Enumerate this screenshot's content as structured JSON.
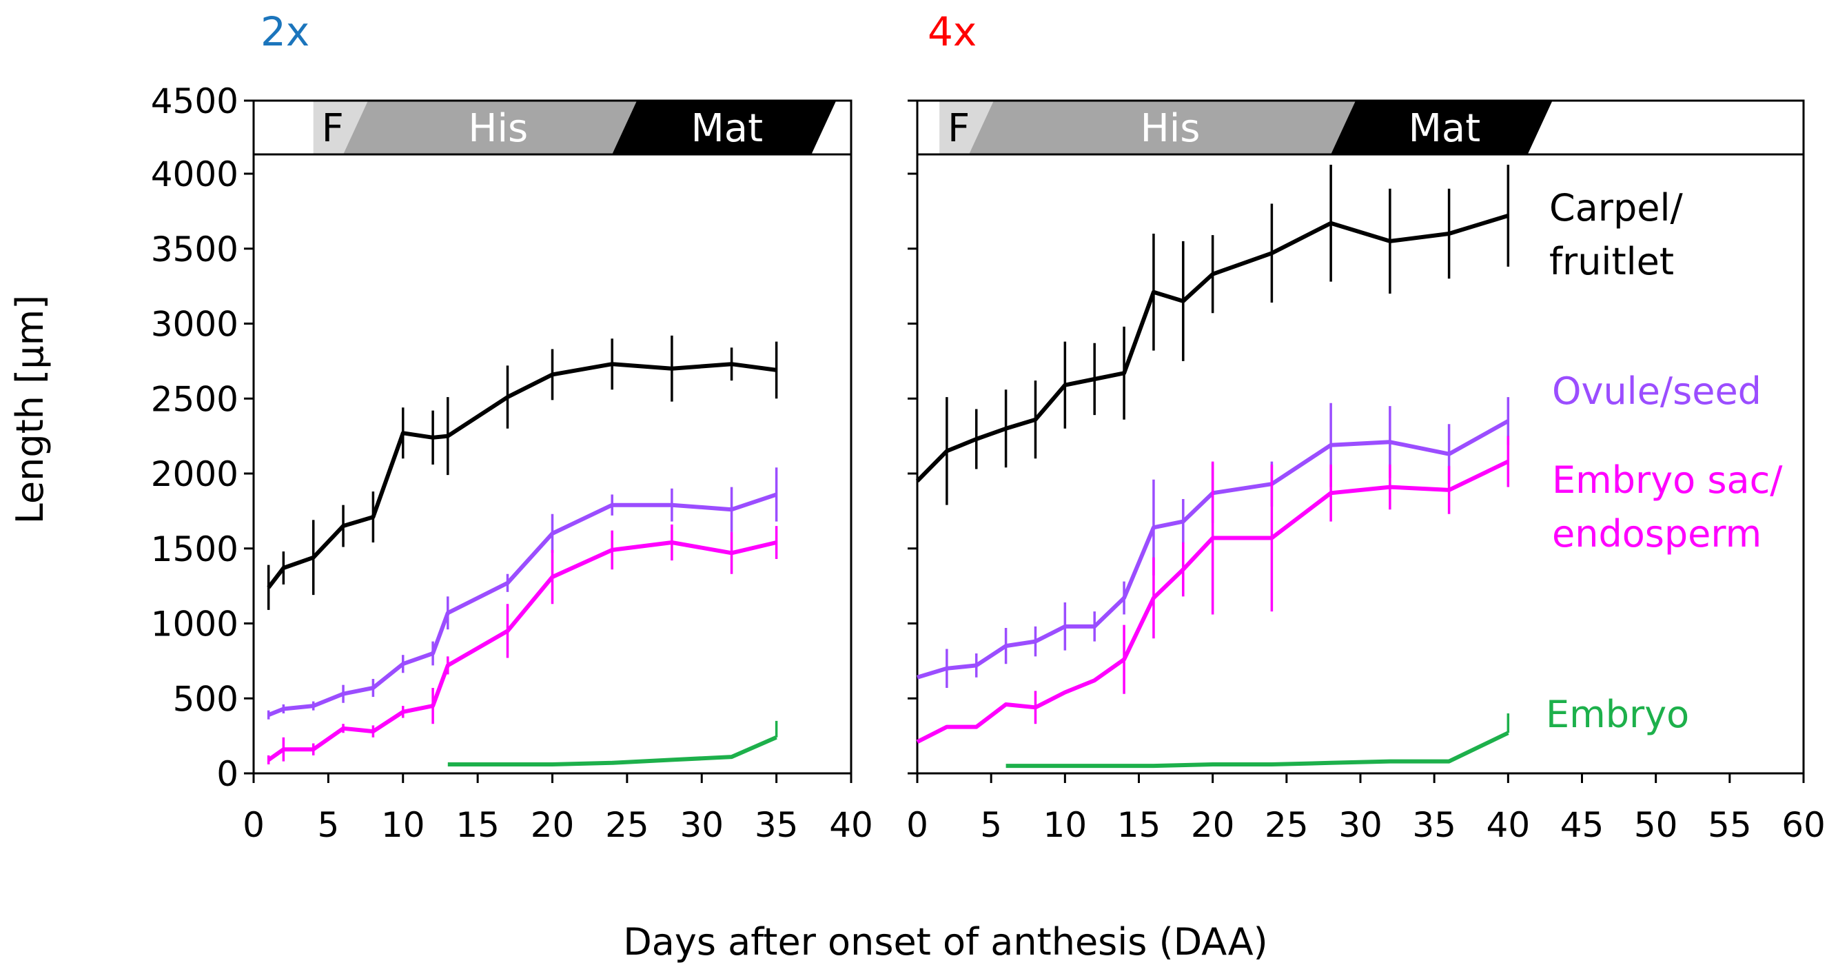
{
  "figure": {
    "ylabel": "Length [µm]",
    "xlabel": "Days after onset of anthesis (DAA)"
  },
  "colors": {
    "carpel": "#000000",
    "ovule": "#9B4DFF",
    "embryo_sac": "#FF00FF",
    "embryo": "#1DB04B",
    "title_2x": "#1B75BC",
    "title_4x": "#FF0000",
    "stage_f": "#D9D9D9",
    "stage_his": "#A6A6A6",
    "stage_mat": "#000000"
  },
  "legend": {
    "carpel_line1": "Carpel/",
    "carpel_line2": "fruitlet",
    "ovule": "Ovule/seed",
    "embryo_sac_line1": "Embryo sac/",
    "embryo_sac_line2": "endosperm",
    "embryo": "Embryo"
  },
  "chart_data": [
    {
      "type": "line",
      "title": "2x",
      "xlabel": "Days after onset of anthesis (DAA)",
      "ylabel": "Length [µm]",
      "xlim": [
        0,
        40
      ],
      "ylim": [
        0,
        4500
      ],
      "xticks": [
        0,
        5,
        10,
        15,
        20,
        25,
        30,
        35,
        40
      ],
      "yticks": [
        0,
        500,
        1000,
        1500,
        2000,
        2500,
        3000,
        3500,
        4000,
        4500
      ],
      "stages": [
        {
          "label": "F",
          "start": 4,
          "end": 8
        },
        {
          "label": "His",
          "start": 6,
          "end": 26
        },
        {
          "label": "Mat",
          "start": 24,
          "end": 39
        }
      ],
      "series": [
        {
          "name": "Carpel/fruitlet",
          "x": [
            1,
            2,
            4,
            6,
            8,
            10,
            12,
            13,
            17,
            20,
            24,
            28,
            32,
            35
          ],
          "y": [
            1240,
            1370,
            1440,
            1650,
            1710,
            2270,
            2240,
            2250,
            2510,
            2660,
            2730,
            2700,
            2730,
            2690
          ],
          "err": [
            150,
            110,
            250,
            140,
            170,
            170,
            180,
            260,
            210,
            170,
            170,
            220,
            110,
            190
          ]
        },
        {
          "name": "Ovule/seed",
          "x": [
            1,
            2,
            4,
            6,
            8,
            10,
            12,
            13,
            17,
            20,
            24,
            28,
            32,
            35
          ],
          "y": [
            390,
            430,
            450,
            530,
            570,
            730,
            800,
            1070,
            1270,
            1600,
            1790,
            1790,
            1760,
            1860
          ],
          "err": [
            30,
            30,
            30,
            60,
            60,
            60,
            80,
            110,
            60,
            130,
            70,
            110,
            150,
            180
          ]
        },
        {
          "name": "Embryo sac/endosperm",
          "x": [
            1,
            2,
            4,
            6,
            8,
            10,
            12,
            13,
            17,
            20,
            24,
            28,
            32,
            35
          ],
          "y": [
            90,
            160,
            160,
            300,
            280,
            410,
            450,
            720,
            950,
            1310,
            1490,
            1540,
            1470,
            1540
          ],
          "err": [
            30,
            80,
            40,
            30,
            40,
            40,
            120,
            60,
            180,
            180,
            130,
            120,
            140,
            110
          ]
        },
        {
          "name": "Embryo",
          "x": [
            13,
            17,
            20,
            24,
            28,
            32,
            35
          ],
          "y": [
            60,
            60,
            60,
            70,
            90,
            110,
            240
          ],
          "err": [
            0,
            0,
            0,
            0,
            0,
            0,
            110
          ]
        }
      ]
    },
    {
      "type": "line",
      "title": "4x",
      "xlabel": "Days after onset of anthesis (DAA)",
      "ylabel": "Length [µm]",
      "xlim": [
        0,
        60
      ],
      "ylim": [
        0,
        4500
      ],
      "xticks": [
        0,
        5,
        10,
        15,
        20,
        25,
        30,
        35,
        40,
        45,
        50,
        55,
        60
      ],
      "yticks": [
        0,
        500,
        1000,
        1500,
        2000,
        2500,
        3000,
        3500,
        4000,
        4500
      ],
      "stages": [
        {
          "label": "F",
          "start": 1.5,
          "end": 6
        },
        {
          "label": "His",
          "start": 3.5,
          "end": 30
        },
        {
          "label": "Mat",
          "start": 28,
          "end": 43
        }
      ],
      "series": [
        {
          "name": "Carpel/fruitlet",
          "x": [
            0,
            2,
            4,
            6,
            8,
            10,
            12,
            14,
            16,
            18,
            20,
            24,
            28,
            32,
            36,
            40
          ],
          "y": [
            1950,
            2150,
            2230,
            2300,
            2360,
            2590,
            2630,
            2670,
            3210,
            3150,
            3330,
            3470,
            3670,
            3550,
            3600,
            3720
          ],
          "err": [
            0,
            360,
            200,
            260,
            260,
            290,
            240,
            310,
            390,
            400,
            260,
            330,
            390,
            350,
            300,
            340
          ]
        },
        {
          "name": "Ovule/seed",
          "x": [
            0,
            2,
            4,
            6,
            8,
            10,
            12,
            14,
            16,
            18,
            20,
            24,
            28,
            32,
            36,
            40
          ],
          "y": [
            640,
            700,
            720,
            850,
            880,
            980,
            980,
            1170,
            1640,
            1680,
            1870,
            1930,
            2190,
            2210,
            2130,
            2350
          ],
          "err": [
            0,
            130,
            80,
            120,
            100,
            160,
            100,
            110,
            320,
            150,
            200,
            150,
            280,
            240,
            200,
            160
          ]
        },
        {
          "name": "Embryo sac/endosperm",
          "x": [
            0,
            2,
            4,
            6,
            8,
            10,
            12,
            14,
            16,
            18,
            20,
            24,
            28,
            32,
            36,
            40
          ],
          "y": [
            210,
            310,
            310,
            460,
            440,
            540,
            620,
            760,
            1170,
            1360,
            1570,
            1570,
            1870,
            1910,
            1890,
            2080
          ],
          "err": [
            0,
            0,
            0,
            0,
            110,
            0,
            0,
            230,
            270,
            180,
            510,
            490,
            190,
            150,
            160,
            170
          ]
        },
        {
          "name": "Embryo",
          "x": [
            6,
            16,
            20,
            24,
            28,
            32,
            36,
            40
          ],
          "y": [
            50,
            50,
            60,
            60,
            70,
            80,
            80,
            270
          ],
          "err": [
            0,
            0,
            0,
            0,
            0,
            0,
            0,
            130
          ]
        }
      ]
    }
  ]
}
